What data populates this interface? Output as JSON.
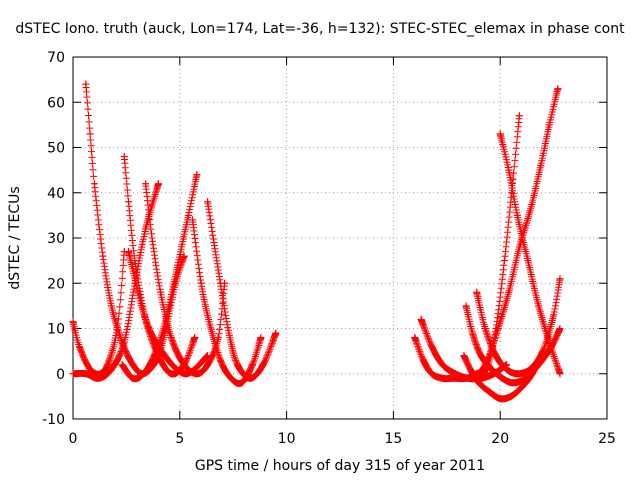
{
  "chart_data": {
    "type": "scatter",
    "title": "dSTEC Iono. truth (auck, Lon=174, Lat=-36, h=132): STEC-STEC_elemax in phase cont",
    "xlabel": "GPS time / hours of day 315 of year 2011",
    "ylabel": "dSTEC  / TECUs",
    "xlim": [
      0,
      25
    ],
    "ylim": [
      -10,
      70
    ],
    "xticks": [
      0,
      5,
      10,
      15,
      20,
      25
    ],
    "yticks": [
      -10,
      0,
      10,
      20,
      30,
      40,
      50,
      60,
      70
    ],
    "grid": true,
    "marker": "+",
    "color": "#ff0000",
    "series": [
      {
        "x": [
          0.0,
          0.3,
          0.8,
          1.3,
          1.7,
          2.1,
          2.4
        ],
        "y": [
          11.5,
          6,
          1,
          0,
          3,
          11,
          27
        ]
      },
      {
        "x": [
          0.6,
          0.8,
          1.0,
          1.4,
          1.8,
          2.3,
          2.8,
          3.3,
          3.9,
          4.3,
          4.8,
          5.2
        ],
        "y": [
          64,
          53,
          42,
          26,
          15,
          7,
          2,
          0,
          3,
          9,
          20,
          26
        ]
      },
      {
        "x": [
          0.0,
          0.6,
          1.2,
          1.8,
          2.4,
          2.9,
          3.4,
          4.0
        ],
        "y": [
          0,
          0,
          -1,
          1,
          7,
          20,
          32,
          42
        ]
      },
      {
        "x": [
          2.4,
          2.6,
          2.9,
          3.4,
          4.0,
          4.6,
          5.2,
          5.7
        ],
        "y": [
          48,
          38,
          25,
          12,
          4,
          0,
          2,
          8
        ]
      },
      {
        "x": [
          2.3,
          2.8,
          3.3,
          3.8,
          4.3,
          4.9,
          5.4,
          5.8
        ],
        "y": [
          2,
          -1,
          0,
          4,
          11,
          24,
          35,
          44
        ]
      },
      {
        "x": [
          3.4,
          3.7,
          4.1,
          4.6,
          5.2,
          5.8,
          6.3,
          6.8,
          7.1
        ],
        "y": [
          42,
          30,
          18,
          8,
          2,
          0,
          2,
          8,
          20
        ]
      },
      {
        "x": [
          5.6,
          6.0,
          6.4,
          6.9,
          7.4,
          7.9,
          8.4,
          8.8
        ],
        "y": [
          34,
          20,
          11,
          3,
          -1,
          -2,
          2,
          8
        ]
      },
      {
        "x": [
          6.3,
          6.6,
          6.9,
          7.3,
          7.7,
          8.3,
          8.9,
          9.5
        ],
        "y": [
          38,
          29,
          20,
          9,
          2,
          -1,
          2,
          9
        ]
      },
      {
        "x": [
          2.6,
          3.4,
          4.3,
          5.3,
          6.3
        ],
        "y": [
          27,
          12,
          4,
          0,
          4
        ]
      },
      {
        "x": [
          16.0,
          16.4,
          16.8,
          17.3,
          17.8,
          18.4,
          18.9,
          19.4
        ],
        "y": [
          8,
          3,
          0,
          -1,
          -1,
          -1,
          0,
          1
        ]
      },
      {
        "x": [
          16.3,
          16.8,
          17.3,
          17.9,
          18.5,
          19.1,
          19.7,
          20.3
        ],
        "y": [
          12,
          6,
          2,
          0,
          -1,
          -1,
          0,
          2
        ]
      },
      {
        "x": [
          18.3,
          18.6,
          19.0,
          19.5,
          20.0,
          20.5,
          21.0,
          21.5,
          22.0
        ],
        "y": [
          4,
          1,
          -2,
          -4,
          -5.5,
          -5,
          -3,
          0,
          5
        ]
      },
      {
        "x": [
          18.4,
          18.7,
          19.1,
          19.6,
          20.1,
          20.6,
          21.2,
          21.8,
          22.4,
          22.8
        ],
        "y": [
          15,
          9,
          4,
          1,
          -1,
          -2,
          -1,
          2,
          6,
          10
        ]
      },
      {
        "x": [
          18.9,
          19.3,
          19.8,
          20.3,
          20.8,
          21.4,
          22.0,
          22.5,
          22.8
        ],
        "y": [
          18,
          10,
          4,
          1,
          0,
          1,
          5,
          13,
          21
        ]
      },
      {
        "x": [
          18.9,
          19.4,
          19.9,
          20.4,
          20.9,
          21.4,
          21.9,
          22.3,
          22.7
        ],
        "y": [
          -1,
          3,
          10,
          18,
          28,
          36,
          46,
          55,
          63
        ]
      },
      {
        "x": [
          19.4,
          19.8,
          20.2,
          20.6,
          20.9
        ],
        "y": [
          1,
          10,
          25,
          43,
          57
        ]
      },
      {
        "x": [
          20.0,
          20.4,
          20.8,
          21.3,
          21.8,
          22.3,
          22.8
        ],
        "y": [
          53,
          45,
          35,
          25,
          15,
          7,
          0
        ]
      }
    ]
  }
}
